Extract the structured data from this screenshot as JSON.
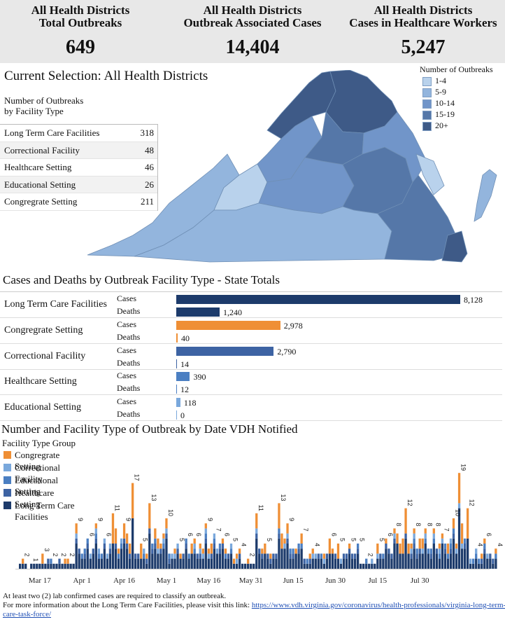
{
  "kpis": [
    {
      "title1": "All Health Districts",
      "title2": "Total Outbreaks",
      "value": "649"
    },
    {
      "title1": "All Health Districts",
      "title2": "Outbreak Associated Cases",
      "value": "14,404"
    },
    {
      "title1": "All Health Districts",
      "title2": "Cases in Healthcare Workers",
      "value": "5,247"
    }
  ],
  "selection_title": "Current Selection: All Health Districts",
  "facility_table": {
    "title_line1": "Number of Outbreaks",
    "title_line2": "by Facility Type",
    "rows": [
      {
        "label": "Long Term Care Facilities",
        "value": "318"
      },
      {
        "label": "Correctional Facility",
        "value": "48"
      },
      {
        "label": "Healthcare Setting",
        "value": "46"
      },
      {
        "label": "Educational Setting",
        "value": "26"
      },
      {
        "label": "Congregrate Setting",
        "value": "211"
      }
    ]
  },
  "map_legend": {
    "title": "Number of Outbreaks",
    "items": [
      {
        "label": "1-4",
        "color": "#b9d2ec"
      },
      {
        "label": "5-9",
        "color": "#93b5dd"
      },
      {
        "label": "10-14",
        "color": "#7195c9"
      },
      {
        "label": "15-19",
        "color": "#5577a8"
      },
      {
        "label": "20+",
        "color": "#3e5a87"
      }
    ]
  },
  "cases_deaths": {
    "title": "Cases and Deaths by Outbreak Facility Type - State Totals",
    "sub_cases": "Cases",
    "sub_deaths": "Deaths",
    "max": 8128,
    "groups": [
      {
        "label": "Long Term Care Facilities",
        "cases": 8128,
        "deaths": 1240,
        "cases_label": "8,128",
        "deaths_label": "1,240",
        "color": "#1d3b6b"
      },
      {
        "label": "Congregrate Setting",
        "cases": 2978,
        "deaths": 40,
        "cases_label": "2,978",
        "deaths_label": "40",
        "color": "#ef8f35"
      },
      {
        "label": "Correctional Facility",
        "cases": 2790,
        "deaths": 14,
        "cases_label": "2,790",
        "deaths_label": "14",
        "color": "#3d63a3"
      },
      {
        "label": "Healthcare Setting",
        "cases": 390,
        "deaths": 12,
        "cases_label": "390",
        "deaths_label": "12",
        "color": "#4b7fc2"
      },
      {
        "label": "Educational Setting",
        "cases": 118,
        "deaths": 0,
        "cases_label": "118",
        "deaths_label": "0",
        "color": "#7aa8dc"
      }
    ]
  },
  "chart_data": {
    "type": "bar",
    "title": "Number and Facility Type of Outbreak by Date VDH Notified",
    "legend_title": "Facility Type Group",
    "legend_position": "top-left",
    "stacked": true,
    "x_ticks": [
      "Mar 17",
      "Apr 1",
      "Apr 16",
      "May 1",
      "May 16",
      "May 31",
      "Jun 15",
      "Jun 30",
      "Jul 15",
      "Jul 30"
    ],
    "series": [
      {
        "name": "Congregrate Setting",
        "color": "#ef8f35"
      },
      {
        "name": "Correctional Facility",
        "color": "#7aa8dc"
      },
      {
        "name": "Educational Setting",
        "color": "#4b7fc2"
      },
      {
        "name": "Healthcare Setting",
        "color": "#3d63a3"
      },
      {
        "name": "Long Term Care Facilities",
        "color": "#1d3b6b"
      }
    ],
    "labels": [
      {
        "day": 1,
        "value": 2
      },
      {
        "day": 4,
        "value": 1
      },
      {
        "day": 8,
        "value": 3
      },
      {
        "day": 11,
        "value": 2
      },
      {
        "day": 14,
        "value": 2
      },
      {
        "day": 17,
        "value": 2
      },
      {
        "day": 20,
        "value": 9
      },
      {
        "day": 24,
        "value": 6
      },
      {
        "day": 27,
        "value": 9
      },
      {
        "day": 30,
        "value": 6
      },
      {
        "day": 33,
        "value": 11
      },
      {
        "day": 37,
        "value": 9
      },
      {
        "day": 40,
        "value": 17
      },
      {
        "day": 43,
        "value": 5
      },
      {
        "day": 46,
        "value": 13
      },
      {
        "day": 52,
        "value": 10
      },
      {
        "day": 56,
        "value": 5
      },
      {
        "day": 59,
        "value": 6
      },
      {
        "day": 62,
        "value": 6
      },
      {
        "day": 66,
        "value": 9
      },
      {
        "day": 69,
        "value": 7
      },
      {
        "day": 72,
        "value": 6
      },
      {
        "day": 75,
        "value": 5
      },
      {
        "day": 78,
        "value": 4
      },
      {
        "day": 81,
        "value": 2
      },
      {
        "day": 84,
        "value": 11
      },
      {
        "day": 87,
        "value": 5
      },
      {
        "day": 92,
        "value": 13
      },
      {
        "day": 95,
        "value": 9
      },
      {
        "day": 100,
        "value": 7
      },
      {
        "day": 104,
        "value": 4
      },
      {
        "day": 110,
        "value": 6
      },
      {
        "day": 113,
        "value": 5
      },
      {
        "day": 117,
        "value": 5
      },
      {
        "day": 120,
        "value": 5
      },
      {
        "day": 123,
        "value": 2
      },
      {
        "day": 127,
        "value": 5
      },
      {
        "day": 130,
        "value": 6
      },
      {
        "day": 133,
        "value": 8
      },
      {
        "day": 137,
        "value": 12
      },
      {
        "day": 140,
        "value": 8
      },
      {
        "day": 144,
        "value": 8
      },
      {
        "day": 147,
        "value": 8
      },
      {
        "day": 150,
        "value": 7
      },
      {
        "day": 154,
        "value": 10
      },
      {
        "day": 156,
        "value": 19
      },
      {
        "day": 159,
        "value": 12
      },
      {
        "day": 162,
        "value": 4
      },
      {
        "day": 165,
        "value": 6
      },
      {
        "day": 169,
        "value": 4
      }
    ]
  },
  "footnote": {
    "line1": "At least two (2) lab confirmed cases are required to classify an outbreak.",
    "line2_text": "For more information about the Long Term Care Facilities, please visit this link:",
    "link": "https://www.vdh.virginia.gov/coronavirus/health-professionals/virginia-long-term-care-task-force/"
  }
}
